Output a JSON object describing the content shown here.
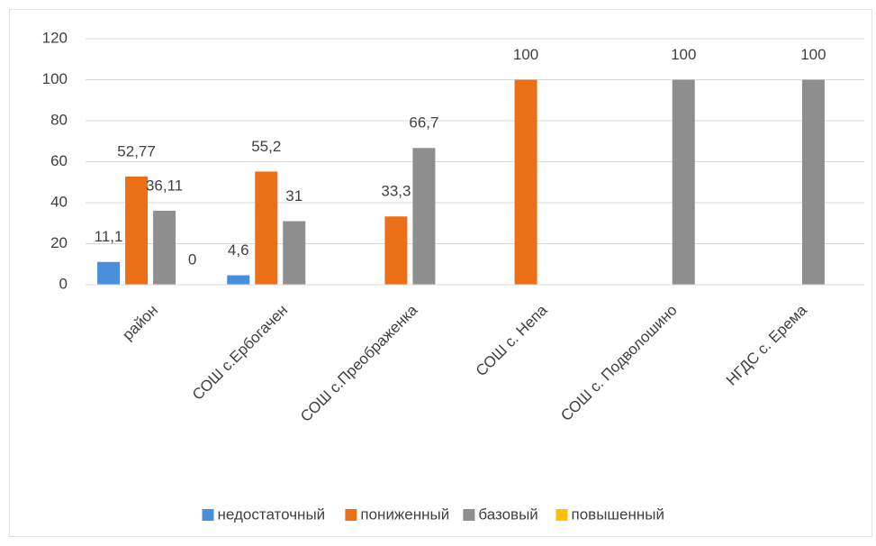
{
  "chart_data": {
    "type": "bar",
    "categories": [
      "район",
      "СОШ с.Ербогачен",
      "СОШ с.Преображенка",
      "СОШ с. Непа",
      "СОШ с. Подволошино",
      "НГДС с. Ерема"
    ],
    "series": [
      {
        "name": "недостаточный",
        "color": "#4a8fdb",
        "values": [
          11.1,
          4.6,
          null,
          null,
          null,
          null
        ],
        "value_labels": [
          "11,1",
          "4,6",
          null,
          null,
          null,
          null
        ]
      },
      {
        "name": "пониженный",
        "color": "#ea6f16",
        "values": [
          52.77,
          55.2,
          33.3,
          100,
          null,
          null
        ],
        "value_labels": [
          "52,77",
          "55,2",
          "33,3",
          "100",
          null,
          null
        ]
      },
      {
        "name": "базовый",
        "color": "#8e8e8e",
        "values": [
          36.11,
          31,
          66.7,
          null,
          100,
          100
        ],
        "value_labels": [
          "36,11",
          "31",
          "66,7",
          null,
          "100",
          "100"
        ]
      },
      {
        "name": "повышенный",
        "color": "#ffc000",
        "values": [
          0,
          null,
          null,
          null,
          null,
          null
        ]
      }
    ],
    "ylim": [
      0,
      120
    ],
    "yticks": [
      0,
      20,
      40,
      60,
      80,
      100,
      120
    ],
    "grid": true,
    "legend": "bottom"
  }
}
